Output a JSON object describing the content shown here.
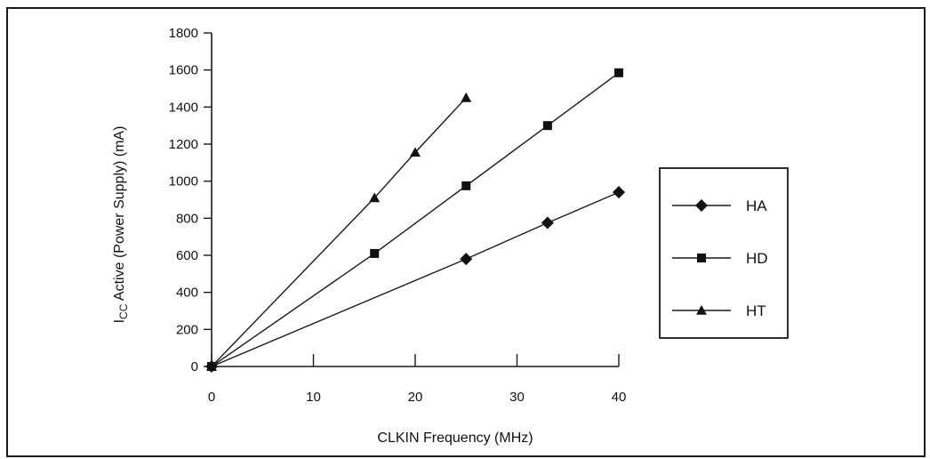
{
  "chart_data": {
    "type": "line",
    "xlabel": "CLKIN Frequency (MHz)",
    "ylabel_main": "I",
    "ylabel_sub": "CC",
    "ylabel_rest": " Active (Power Supply) (mA)",
    "xlim": [
      0,
      40
    ],
    "ylim": [
      0,
      1800
    ],
    "xticks": [
      0,
      10,
      20,
      30,
      40
    ],
    "yticks": [
      0,
      200,
      400,
      600,
      800,
      1000,
      1200,
      1400,
      1600,
      1800
    ],
    "grid": false,
    "legend_position": "right",
    "series": [
      {
        "name": "HA",
        "marker": "diamond",
        "points": [
          [
            0,
            0
          ],
          [
            25,
            580
          ],
          [
            33,
            775
          ],
          [
            40,
            940
          ]
        ]
      },
      {
        "name": "HD",
        "marker": "square",
        "points": [
          [
            0,
            0
          ],
          [
            16,
            610
          ],
          [
            25,
            975
          ],
          [
            33,
            1300
          ],
          [
            40,
            1585
          ]
        ]
      },
      {
        "name": "HT",
        "marker": "triangle",
        "points": [
          [
            0,
            0
          ],
          [
            16,
            910
          ],
          [
            20,
            1155
          ],
          [
            25,
            1450
          ]
        ]
      }
    ]
  }
}
